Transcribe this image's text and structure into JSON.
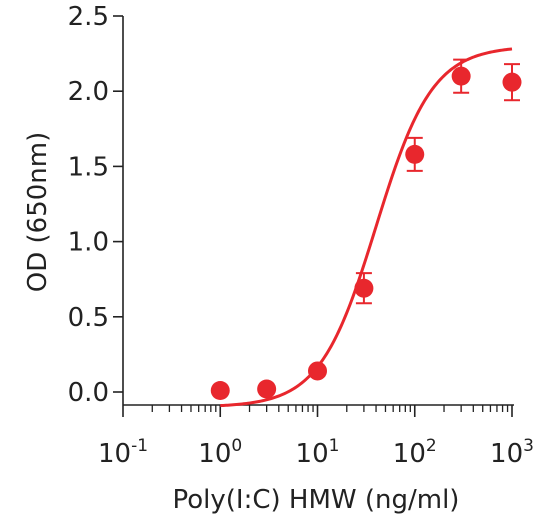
{
  "chart_data": {
    "type": "scatter",
    "x_scale": "log",
    "xlabel": "Poly(I:C) HMW (ng/ml)",
    "ylabel": "OD (650nm)",
    "xlim": [
      0.1,
      1000
    ],
    "ylim": [
      -0.1,
      2.5
    ],
    "x_ticks": [
      {
        "base": "10",
        "exp": "-1"
      },
      {
        "base": "10",
        "exp": "0"
      },
      {
        "base": "10",
        "exp": "1"
      },
      {
        "base": "10",
        "exp": "2"
      },
      {
        "base": "10",
        "exp": "3"
      }
    ],
    "y_ticks": [
      "0.0",
      "0.5",
      "1.0",
      "1.5",
      "2.0",
      "2.5"
    ],
    "grid": false,
    "color": "#e8272d",
    "series": [
      {
        "points": [
          {
            "x": 1,
            "y": 0.01,
            "err": 0
          },
          {
            "x": 3,
            "y": 0.02,
            "err": 0
          },
          {
            "x": 10,
            "y": 0.14,
            "err": 0
          },
          {
            "x": 30,
            "y": 0.69,
            "err": 0.1
          },
          {
            "x": 100,
            "y": 1.58,
            "err": 0.11
          },
          {
            "x": 300,
            "y": 2.1,
            "err": 0.11
          },
          {
            "x": 1000,
            "y": 2.06,
            "err": 0.12
          }
        ],
        "fit": {
          "type": "4PL",
          "bottom": -0.1,
          "top": 2.3,
          "ec50": 40,
          "hill": 1.5
        }
      }
    ]
  }
}
